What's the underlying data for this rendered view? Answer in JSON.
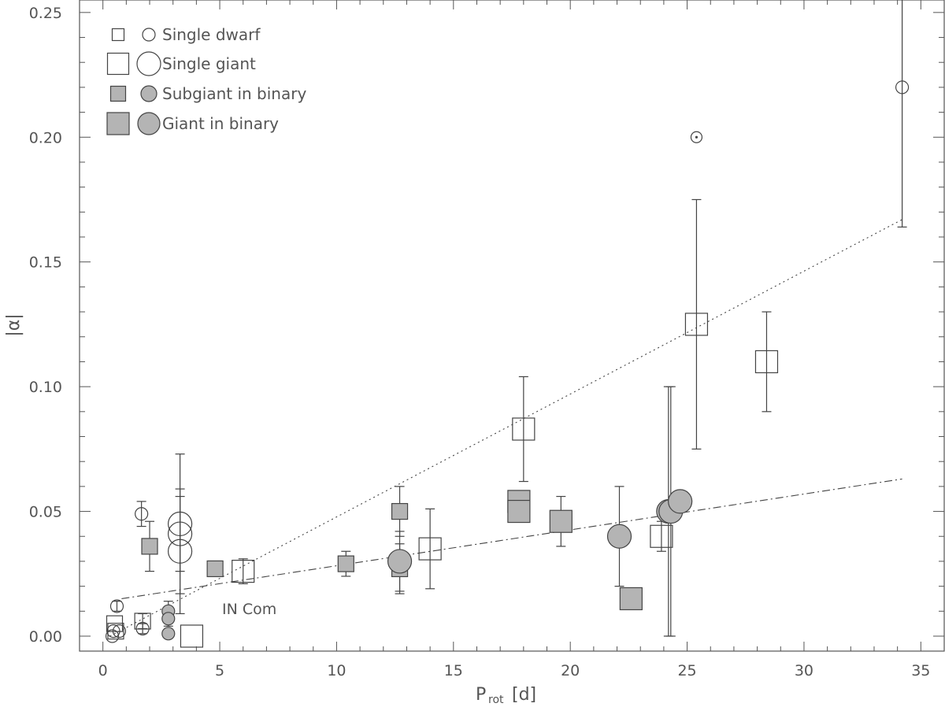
{
  "chart_data": {
    "type": "scatter",
    "xlabel": "P",
    "xlabel_sub": "rot",
    "xlabel_unit": "[d]",
    "ylabel": "|α|",
    "xlim": [
      -1,
      36
    ],
    "ylim": [
      -0.006,
      0.255
    ],
    "xticks": [
      "0",
      "5",
      "10",
      "15",
      "20",
      "25",
      "30",
      "35"
    ],
    "yticks": [
      "0.00",
      "0.05",
      "0.10",
      "0.15",
      "0.20",
      "0.25"
    ],
    "legend": {
      "placement": "top-left",
      "entries": [
        {
          "label": "Single dwarf",
          "filled": false,
          "size": "small"
        },
        {
          "label": "Single giant",
          "filled": false,
          "size": "large"
        },
        {
          "label": "Subgiant in binary",
          "filled": true,
          "size": "small"
        },
        {
          "label": "Giant in binary",
          "filled": true,
          "size": "large"
        }
      ]
    },
    "annotations": [
      {
        "text": "IN Com",
        "x": 5.1,
        "y": 0.011
      }
    ],
    "fit_lines": [
      {
        "style": "dotted",
        "x": [
          0.3,
          34.2
        ],
        "y": [
          0.0,
          0.167
        ]
      },
      {
        "style": "dashdot",
        "x": [
          0.8,
          34.2
        ],
        "y": [
          0.015,
          0.063
        ]
      }
    ],
    "colors": {
      "filled": "#b4b4b4",
      "stroke": "#444444",
      "axis": "#555555"
    },
    "points": [
      {
        "group": "single_dwarf",
        "shape": "square",
        "x": 0.5,
        "y": 0.005,
        "err": null
      },
      {
        "group": "single_dwarf",
        "shape": "square",
        "x": 0.55,
        "y": 0.002,
        "err": null
      },
      {
        "group": "single_dwarf",
        "shape": "square",
        "x": 1.7,
        "y": 0.006,
        "err": 0.003
      },
      {
        "group": "single_dwarf",
        "shape": "circle",
        "x": 0.6,
        "y": 0.012,
        "err": 0.002
      },
      {
        "group": "single_dwarf",
        "shape": "circle",
        "x": 0.45,
        "y": 0.002,
        "err": null
      },
      {
        "group": "single_dwarf",
        "shape": "circle",
        "x": 0.7,
        "y": 0.002,
        "err": null
      },
      {
        "group": "single_dwarf",
        "shape": "circle",
        "x": 0.4,
        "y": 0.0,
        "err": null
      },
      {
        "group": "single_dwarf",
        "shape": "circle",
        "x": 1.65,
        "y": 0.049,
        "err": 0.005
      },
      {
        "group": "single_dwarf",
        "shape": "circle",
        "x": 1.7,
        "y": 0.003,
        "err": 0.002
      },
      {
        "group": "single_dwarf",
        "shape": "circle",
        "x": 34.2,
        "y": 0.22,
        "err": null,
        "err_minus": 0.056,
        "err_plus": 0.04
      },
      {
        "group": "sun",
        "shape": "sun",
        "x": 25.4,
        "y": 0.2,
        "err": null
      },
      {
        "group": "single_giant",
        "shape": "circle",
        "x": 3.3,
        "y": 0.045,
        "err": 0.028
      },
      {
        "group": "single_giant",
        "shape": "circle",
        "x": 3.3,
        "y": 0.041,
        "err": 0.015
      },
      {
        "group": "single_giant",
        "shape": "circle",
        "x": 3.3,
        "y": 0.034,
        "err": 0.025
      },
      {
        "group": "single_giant",
        "shape": "square",
        "x": 3.8,
        "y": 0.0,
        "err": null
      },
      {
        "group": "single_giant",
        "shape": "square",
        "x": 6.0,
        "y": 0.026,
        "err": 0.005
      },
      {
        "group": "single_giant",
        "shape": "square",
        "x": 14.0,
        "y": 0.035,
        "err": 0.016
      },
      {
        "group": "single_giant",
        "shape": "square",
        "x": 18.0,
        "y": 0.083,
        "err": 0.021
      },
      {
        "group": "single_giant",
        "shape": "square",
        "x": 23.9,
        "y": 0.04,
        "err": 0.006
      },
      {
        "group": "single_giant",
        "shape": "square",
        "x": 25.4,
        "y": 0.125,
        "err": 0.05
      },
      {
        "group": "single_giant",
        "shape": "square",
        "x": 28.4,
        "y": 0.11,
        "err": 0.02
      },
      {
        "group": "subgiant_binary",
        "shape": "square",
        "x": 2.0,
        "y": 0.036,
        "err": 0.01
      },
      {
        "group": "subgiant_binary",
        "shape": "square",
        "x": 4.8,
        "y": 0.027,
        "err": 0.003
      },
      {
        "group": "subgiant_binary",
        "shape": "square",
        "x": 10.4,
        "y": 0.029,
        "err": 0.005
      },
      {
        "group": "subgiant_binary",
        "shape": "square",
        "x": 12.7,
        "y": 0.05,
        "err": 0.01
      },
      {
        "group": "subgiant_binary",
        "shape": "square",
        "x": 12.7,
        "y": 0.027,
        "err": 0.01
      },
      {
        "group": "subgiant_binary",
        "shape": "circle",
        "x": 2.8,
        "y": 0.01,
        "err": 0.004
      },
      {
        "group": "subgiant_binary",
        "shape": "circle",
        "x": 2.8,
        "y": 0.007,
        "err": 0.003
      },
      {
        "group": "subgiant_binary",
        "shape": "circle",
        "x": 2.8,
        "y": 0.001,
        "err": null
      },
      {
        "group": "giant_binary",
        "shape": "square",
        "x": 17.8,
        "y": 0.054,
        "err": 0.004
      },
      {
        "group": "giant_binary",
        "shape": "square",
        "x": 17.8,
        "y": 0.05,
        "err": 0.004
      },
      {
        "group": "giant_binary",
        "shape": "square",
        "x": 19.6,
        "y": 0.046,
        "err": 0.01
      },
      {
        "group": "giant_binary",
        "shape": "square",
        "x": 22.6,
        "y": 0.015,
        "err": 0.003
      },
      {
        "group": "giant_binary",
        "shape": "circle",
        "x": 12.7,
        "y": 0.03,
        "err": 0.012
      },
      {
        "group": "giant_binary",
        "shape": "circle",
        "x": 22.1,
        "y": 0.04,
        "err": 0.02
      },
      {
        "group": "giant_binary",
        "shape": "circle",
        "x": 24.2,
        "y": 0.05,
        "err": 0.05
      },
      {
        "group": "giant_binary",
        "shape": "circle",
        "x": 24.3,
        "y": 0.05,
        "err": 0.05
      },
      {
        "group": "giant_binary",
        "shape": "circle",
        "x": 24.7,
        "y": 0.054,
        "err": 0.004
      }
    ]
  }
}
